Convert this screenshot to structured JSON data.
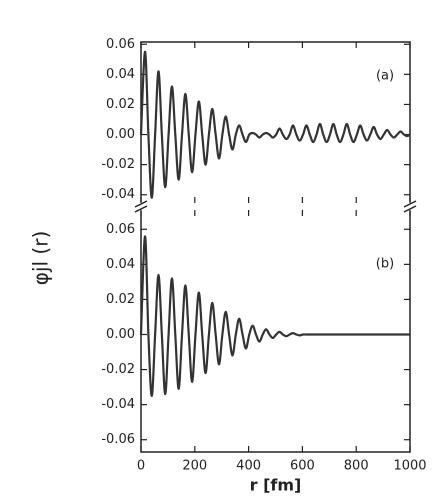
{
  "chart_data": [
    {
      "type": "line",
      "label": "(a)",
      "color": "#333",
      "x": [
        0,
        15,
        27.5,
        40,
        52.5,
        65,
        77.5,
        90,
        102.5,
        115,
        127.5,
        140,
        152.5,
        165,
        177.5,
        190,
        202.5,
        215,
        227.5,
        240,
        252.5,
        265,
        277.5,
        290,
        302.5,
        315,
        327.5,
        340,
        352.5,
        365,
        377.5,
        390,
        402.5,
        415,
        427.5,
        440,
        452.5,
        465,
        477.5,
        490,
        502.5,
        515,
        527.5,
        540,
        552.5,
        565,
        577.5,
        590,
        602.5,
        615,
        627.5,
        640,
        652.5,
        665,
        677.5,
        690,
        702.5,
        715,
        727.5,
        740,
        752.5,
        765,
        777.5,
        790,
        802.5,
        815,
        827.5,
        840,
        852.5,
        865,
        877.5,
        890,
        902.5,
        915,
        927.5,
        940,
        952.5,
        965,
        977.5,
        990,
        1000
      ],
      "values": [
        0,
        0.055,
        0,
        -0.042,
        0,
        0.042,
        0,
        -0.035,
        0,
        0.032,
        0,
        -0.03,
        0,
        0.027,
        0,
        -0.025,
        0,
        0.022,
        0,
        -0.02,
        0,
        0.017,
        0,
        -0.016,
        0,
        0.012,
        0,
        -0.01,
        0,
        0.006,
        0,
        -0.005,
        0,
        0.001,
        0,
        -0.002,
        0,
        0.001,
        0,
        -0.002,
        0,
        0.004,
        0,
        -0.003,
        0,
        0.006,
        0,
        -0.004,
        0,
        0.006,
        0,
        -0.005,
        0,
        0.007,
        0,
        -0.005,
        0,
        0.007,
        0,
        -0.005,
        0,
        0.007,
        0,
        -0.005,
        0,
        0.006,
        0,
        -0.004,
        0,
        0.005,
        0,
        -0.003,
        0,
        0.003,
        0,
        -0.002,
        0,
        0.002,
        0,
        -0.001,
        0
      ],
      "xlim": [
        0,
        1000
      ],
      "xticks": [
        0,
        200,
        400,
        600,
        800,
        1000
      ],
      "ylim": [
        -0.0455,
        0.0615
      ],
      "yticks": [
        0.06,
        0.04,
        0.02,
        {
          "value": 0,
          "label": "0.00"
        },
        -0.02,
        -0.04
      ]
    },
    {
      "type": "line",
      "label": "(b)",
      "color": "#333",
      "ylabel": "φjl (r)",
      "xlabel": "r [fm]",
      "x": [
        0,
        15,
        27.5,
        40,
        52.5,
        65,
        77.5,
        90,
        102.5,
        115,
        127.5,
        140,
        152.5,
        165,
        177.5,
        190,
        202.5,
        215,
        227.5,
        240,
        252.5,
        265,
        277.5,
        290,
        302.5,
        315,
        327.5,
        340,
        352.5,
        365,
        377.5,
        390,
        402.5,
        415,
        427.5,
        440,
        452.5,
        465,
        477.5,
        490,
        502.5,
        515,
        527.5,
        540,
        552.5,
        565,
        577.5,
        590,
        602.5,
        615,
        627.5,
        640,
        652.5,
        665,
        677.5,
        690,
        702.5,
        715,
        727.5,
        740,
        752.5,
        765,
        777.5,
        790,
        802.5,
        815,
        827.5,
        840,
        852.5,
        865,
        877.5,
        890,
        902.5,
        915,
        927.5,
        940,
        952.5,
        965,
        977.5,
        990,
        1000
      ],
      "values": [
        0,
        0.056,
        0,
        -0.035,
        0,
        0.034,
        0,
        -0.034,
        0,
        0.032,
        0,
        -0.031,
        0,
        0.028,
        0,
        -0.027,
        0,
        0.024,
        0,
        -0.022,
        0,
        0.018,
        0,
        -0.017,
        0,
        0.013,
        0,
        -0.012,
        0,
        0.009,
        0,
        -0.008,
        0,
        0.005,
        0,
        -0.004,
        0,
        0.003,
        0,
        -0.002,
        0,
        0.0015,
        0,
        -0.001,
        0,
        0.0008,
        0,
        -0.0005,
        0,
        0,
        0,
        0,
        0,
        0,
        0,
        0,
        0,
        0,
        0,
        0,
        0,
        0,
        0,
        0,
        0,
        0,
        0,
        0,
        0,
        0,
        0,
        0,
        0,
        0,
        0,
        0,
        0,
        0,
        0,
        0,
        0
      ],
      "xlim": [
        0,
        1000
      ],
      "xticks": [
        0,
        200,
        400,
        600,
        800,
        1000
      ],
      "ylim": [
        -0.067,
        0.071
      ],
      "yticks": [
        0.06,
        0.04,
        0.02,
        {
          "value": 0,
          "label": "0.00"
        },
        -0.02,
        -0.04,
        -0.06
      ]
    }
  ]
}
